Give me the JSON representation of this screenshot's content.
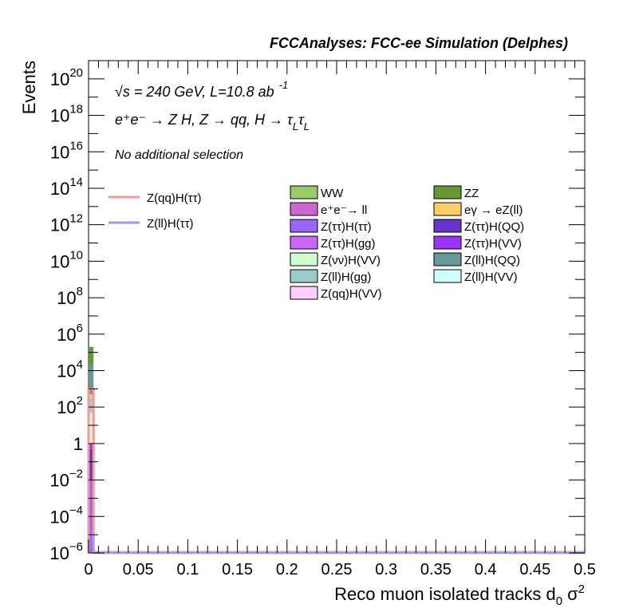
{
  "chart_data": {
    "type": "bar",
    "stacked": true,
    "title": "FCCAnalyses: FCC-ee Simulation (Delphes)",
    "xlabel": "Reco muon isolated tracks d",
    "xlabel_sub": "0",
    "xlabel_tail": "σ",
    "xlabel_sup": "2",
    "ylabel": "Events",
    "xlim": [
      0,
      0.5
    ],
    "ylim": [
      1e-06,
      1e+21
    ],
    "yscale": "log",
    "grid": false,
    "x_ticks": [
      "0",
      "0.05",
      "0.1",
      "0.15",
      "0.2",
      "0.25",
      "0.3",
      "0.35",
      "0.4",
      "0.45",
      "0.5"
    ],
    "x_tick_values": [
      0,
      0.05,
      0.1,
      0.15,
      0.2,
      0.25,
      0.3,
      0.35,
      0.4,
      0.45,
      0.5
    ],
    "y_ticks": [
      {
        "value": 1e-06,
        "base": "10",
        "exp": "−6"
      },
      {
        "value": 0.0001,
        "base": "10",
        "exp": "−4"
      },
      {
        "value": 0.01,
        "base": "10",
        "exp": "−2"
      },
      {
        "value": 1,
        "base": "1",
        "exp": ""
      },
      {
        "value": 100.0,
        "base": "10",
        "exp": "2"
      },
      {
        "value": 10000.0,
        "base": "10",
        "exp": "4"
      },
      {
        "value": 1000000.0,
        "base": "10",
        "exp": "6"
      },
      {
        "value": 100000000.0,
        "base": "10",
        "exp": "8"
      },
      {
        "value": 10000000000.0,
        "base": "10",
        "exp": "10"
      },
      {
        "value": 1000000000000.0,
        "base": "10",
        "exp": "12"
      },
      {
        "value": 100000000000000.0,
        "base": "10",
        "exp": "14"
      },
      {
        "value": 1e+16,
        "base": "10",
        "exp": "16"
      },
      {
        "value": 1e+18,
        "base": "10",
        "exp": "18"
      },
      {
        "value": 1e+20,
        "base": "10",
        "exp": "20"
      }
    ],
    "annotations": {
      "line1_sqrt": "√s = 240 GeV, L=10.8 ab",
      "line1_sup": "-1",
      "line2": "e⁺e⁻ → Z H, Z → qq, H → τ",
      "line2_sub1": "L",
      "line2_tau": "τ",
      "line2_sub2": "L",
      "line3": "No additional selection"
    },
    "signal_legend": [
      {
        "name": "Z(qq)H(ττ)",
        "color": "#f59a9a"
      },
      {
        "name": "Z(ll)H(ττ)",
        "color": "#9a9af5"
      }
    ],
    "background_legend": [
      {
        "name": "WW",
        "color": "#99cc66"
      },
      {
        "name": "ZZ",
        "color": "#669933"
      },
      {
        "name": "e⁺e⁻→ ll",
        "color": "#cc66cc"
      },
      {
        "name": "eγ → eZ(ll)",
        "color": "#ffcc66"
      },
      {
        "name": "Z(ττ)H(ττ)",
        "color": "#9966ff"
      },
      {
        "name": "Z(ττ)H(QQ)",
        "color": "#6633cc"
      },
      {
        "name": "Z(ττ)H(gg)",
        "color": "#cc66ff"
      },
      {
        "name": "Z(ττ)H(VV)",
        "color": "#9933ff"
      },
      {
        "name": "Z(νν)H(VV)",
        "color": "#ccffcc"
      },
      {
        "name": "Z(ll)H(QQ)",
        "color": "#669999"
      },
      {
        "name": "Z(ll)H(gg)",
        "color": "#99cccc"
      },
      {
        "name": "Z(ll)H(VV)",
        "color": "#ccffff"
      },
      {
        "name": "Z(qq)H(VV)",
        "color": "#ffccff"
      }
    ],
    "stack_first_bin": {
      "x_range": [
        0,
        0.005
      ],
      "segments": [
        {
          "name": "Z(ττ)H(ττ)",
          "top": 0.01
        },
        {
          "name": "Z(ττ)H(QQ)",
          "top": 0.5
        },
        {
          "name": "Z(ττ)H(VV)",
          "top": 1
        },
        {
          "name": "Z(νν)H(VV)",
          "top": 50
        },
        {
          "name": "Z(ll)H(gg)",
          "top": 300
        },
        {
          "name": "eγ → eZ(ll)",
          "top": 500
        },
        {
          "name": "Z(ll)H(QQ)",
          "top": 20000
        },
        {
          "name": "ZZ",
          "top": 200000
        }
      ],
      "signal_Z(qq)H(ττ)": 1000,
      "signal_Z(ll)H(ττ)": 1e-05
    }
  }
}
